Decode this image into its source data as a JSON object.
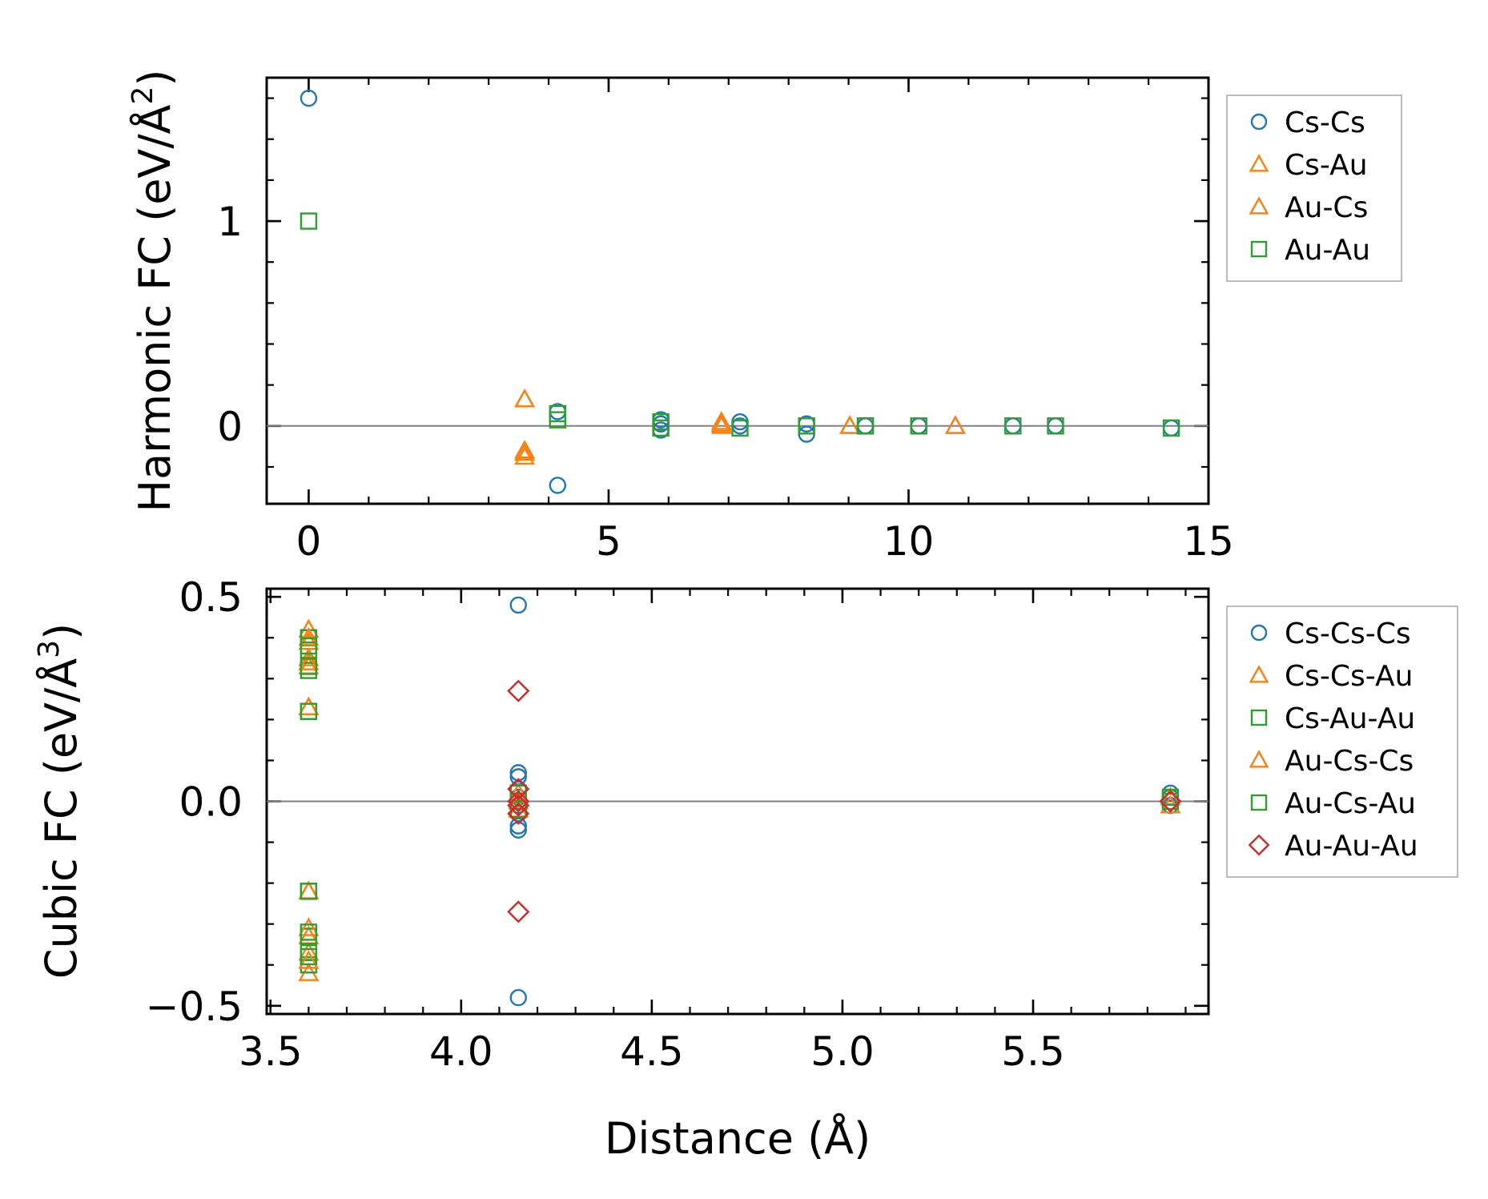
{
  "colors": {
    "blue": "#1f77b4",
    "orange": "#ff7f0e",
    "green": "#2ca02c",
    "red": "#d62728",
    "zero_line": "#808080"
  },
  "chart_data": [
    {
      "type": "scatter",
      "title": "",
      "xlabel": "",
      "ylabel_main": "Harmonic FC (eV/Å",
      "ylabel_sup": "2",
      "ylabel_close": ")",
      "xlim": [
        -0.7,
        15
      ],
      "ylim": [
        -0.38,
        1.7
      ],
      "xticks": [
        0,
        5,
        10,
        15
      ],
      "xtick_labels": [
        "0",
        "5",
        "10",
        "15"
      ],
      "yticks": [
        0,
        1
      ],
      "ytick_labels": [
        "0",
        "1"
      ],
      "xminor_step": 1,
      "yminor_step": 0.2,
      "zero_line": true,
      "legend_position": "right",
      "series": [
        {
          "name": "Cs-Cs",
          "marker": "circle",
          "color": "blue",
          "x": [
            0,
            4.15,
            4.15,
            5.87,
            5.87,
            5.87,
            7.19,
            7.19,
            8.3,
            8.3,
            9.28,
            10.17,
            11.74,
            12.45,
            14.38
          ],
          "y": [
            1.6,
            0.07,
            -0.29,
            0.03,
            0.01,
            -0.02,
            0.02,
            0.0,
            0.01,
            -0.04,
            0.0,
            0.0,
            0.0,
            0.0,
            -0.01
          ]
        },
        {
          "name": "Cs-Au",
          "marker": "triangle",
          "color": "orange",
          "x": [
            3.6,
            3.6,
            3.6,
            6.88,
            6.88,
            9.02,
            10.78
          ],
          "y": [
            0.13,
            -0.12,
            -0.15,
            0.02,
            0.0,
            0.0,
            0.0
          ]
        },
        {
          "name": "Au-Cs",
          "marker": "triangle",
          "color": "orange",
          "x": [
            3.6,
            3.6,
            6.88,
            9.02,
            10.78
          ],
          "y": [
            -0.13,
            0.13,
            0.01,
            0.0,
            0.0
          ]
        },
        {
          "name": "Au-Au",
          "marker": "square",
          "color": "green",
          "x": [
            0,
            4.15,
            4.15,
            5.87,
            5.87,
            7.19,
            8.3,
            9.28,
            9.28,
            10.17,
            11.74,
            12.45,
            14.38
          ],
          "y": [
            1.0,
            0.06,
            0.03,
            0.02,
            -0.01,
            -0.01,
            0.0,
            0.0,
            0.0,
            0.0,
            0.0,
            0.0,
            -0.01
          ]
        }
      ]
    },
    {
      "type": "scatter",
      "title": "",
      "xlabel": "Distance (Å)",
      "ylabel_main": "Cubic FC (eV/Å",
      "ylabel_sup": "3",
      "ylabel_close": ")",
      "xlim": [
        3.49,
        5.96
      ],
      "ylim": [
        -0.52,
        0.52
      ],
      "xticks": [
        3.5,
        4.0,
        4.5,
        5.0,
        5.5
      ],
      "xtick_labels": [
        "3.5",
        "4.0",
        "4.5",
        "5.0",
        "5.5"
      ],
      "yticks": [
        -0.5,
        0.0,
        0.5
      ],
      "ytick_labels": [
        "−0.5",
        "0.0",
        "0.5"
      ],
      "xminor_step": 0.1,
      "yminor_step": 0.1,
      "zero_line": true,
      "legend_position": "right",
      "series": [
        {
          "name": "Cs-Cs-Cs",
          "marker": "circle",
          "color": "blue",
          "x": [
            4.15,
            4.15,
            4.15,
            4.15,
            4.15,
            4.15,
            4.15,
            4.15,
            4.15,
            4.15,
            5.86,
            5.86,
            5.86
          ],
          "y": [
            0.48,
            0.07,
            0.06,
            0.03,
            0.01,
            -0.01,
            -0.03,
            -0.06,
            -0.07,
            -0.48,
            0.02,
            0.01,
            -0.01
          ]
        },
        {
          "name": "Cs-Cs-Au",
          "marker": "triangle",
          "color": "orange",
          "x": [
            3.6,
            3.6,
            3.6,
            3.6,
            3.6,
            3.6,
            3.6,
            3.6,
            3.6,
            4.15,
            4.15,
            5.86
          ],
          "y": [
            0.42,
            0.39,
            0.35,
            0.33,
            0.23,
            -0.22,
            -0.33,
            -0.37,
            -0.42,
            0.02,
            -0.02,
            -0.01
          ]
        },
        {
          "name": "Cs-Au-Au",
          "marker": "square",
          "color": "green",
          "x": [
            3.6,
            3.6,
            3.6,
            3.6,
            3.6,
            3.6,
            3.6,
            3.6,
            4.15,
            4.15,
            5.86
          ],
          "y": [
            0.4,
            0.37,
            0.32,
            0.22,
            -0.22,
            -0.33,
            -0.37,
            -0.4,
            0.02,
            -0.02,
            0.0
          ]
        },
        {
          "name": "Au-Cs-Cs",
          "marker": "triangle",
          "color": "orange",
          "x": [
            3.6,
            3.6,
            3.6,
            3.6,
            3.6,
            3.6,
            4.15,
            5.86
          ],
          "y": [
            0.4,
            0.34,
            0.23,
            -0.22,
            -0.31,
            -0.39,
            0.0,
            0.01
          ]
        },
        {
          "name": "Au-Cs-Au",
          "marker": "square",
          "color": "green",
          "x": [
            3.6,
            3.6,
            3.6,
            3.6,
            3.6,
            3.6,
            4.15,
            5.86
          ],
          "y": [
            0.38,
            0.33,
            0.22,
            -0.22,
            -0.32,
            -0.38,
            0.0,
            0.01
          ]
        },
        {
          "name": "Au-Au-Au",
          "marker": "diamond",
          "color": "red",
          "x": [
            4.15,
            4.15,
            4.15,
            4.15,
            4.15,
            4.15,
            5.86,
            5.86
          ],
          "y": [
            0.27,
            0.03,
            0.0,
            -0.01,
            -0.03,
            -0.27,
            0.0,
            0.0
          ]
        }
      ]
    }
  ]
}
